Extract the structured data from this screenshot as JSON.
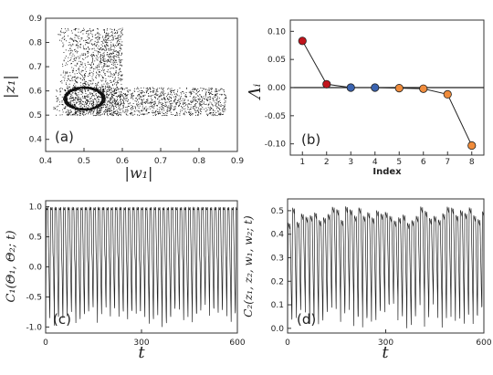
{
  "chart_data": [
    {
      "id": "a",
      "type": "scatter",
      "panel_label": "(a)",
      "xlabel": "|w₁|",
      "ylabel": "|z₁|",
      "xlim": [
        0.4,
        0.9
      ],
      "ylim": [
        0.35,
        0.9
      ],
      "xticks": [
        "0.4",
        "0.5",
        "0.6",
        "0.7",
        "0.8",
        "0.9"
      ],
      "yticks": [
        "0.4",
        "0.5",
        "0.6",
        "0.7",
        "0.8",
        "0.9"
      ],
      "description_regions": {
        "vertical_sheet": {
          "x": [
            0.43,
            0.6
          ],
          "y": [
            0.5,
            0.86
          ]
        },
        "horizontal_sheet": {
          "x": [
            0.45,
            0.87
          ],
          "y": [
            0.5,
            0.62
          ]
        },
        "ring_center": [
          0.5,
          0.57
        ],
        "ring_radius": [
          0.05,
          0.045
        ]
      }
    },
    {
      "id": "b",
      "type": "line",
      "panel_label": "(b)",
      "xlabel": "Index",
      "ylabel": "Λᵢ",
      "xlim": [
        0.5,
        8.5
      ],
      "ylim": [
        -0.12,
        0.12
      ],
      "xticks": [
        "1",
        "2",
        "3",
        "4",
        "5",
        "6",
        "7",
        "8"
      ],
      "yticks": [
        "0.10",
        "0.05",
        "0.00",
        "-0.05",
        "-0.10"
      ],
      "x": [
        1,
        2,
        3,
        4,
        5,
        6,
        7,
        8
      ],
      "values": [
        0.083,
        0.006,
        0.0,
        0.0,
        -0.001,
        -0.002,
        -0.012,
        -0.103
      ],
      "marker_colors": [
        "#c0141c",
        "#c0141c",
        "#3a63b0",
        "#3a63b0",
        "#f08c3c",
        "#f08c3c",
        "#f08c3c",
        "#f08c3c"
      ],
      "zero_line": true
    },
    {
      "id": "c",
      "type": "line",
      "panel_label": "(c)",
      "xlabel": "t",
      "ylabel": "C₁(Θ₁, Θ₂; t)",
      "xlim": [
        0,
        600
      ],
      "ylim": [
        -1.1,
        1.1
      ],
      "xticks": [
        "0",
        "300",
        "600"
      ],
      "yticks": [
        "1.0",
        "0.5",
        "0.0",
        "-0.5",
        "-1.0"
      ],
      "signal": {
        "period": 13.5,
        "high": 1.0,
        "low_range": [
          -1.0,
          -0.6
        ]
      }
    },
    {
      "id": "d",
      "type": "line",
      "panel_label": "(d)",
      "xlabel": "t",
      "ylabel": "C₂(z₁, z₂, w₁, w₂; t)",
      "xlim": [
        0,
        600
      ],
      "ylim": [
        -0.02,
        0.55
      ],
      "xticks": [
        "0",
        "300",
        "600"
      ],
      "yticks": [
        "0.5",
        "0.4",
        "0.3",
        "0.2",
        "0.1",
        "0.0"
      ],
      "signal": {
        "period": 13.5,
        "high_range": [
          0.45,
          0.52
        ],
        "low_range": [
          0.0,
          0.11
        ]
      }
    }
  ]
}
